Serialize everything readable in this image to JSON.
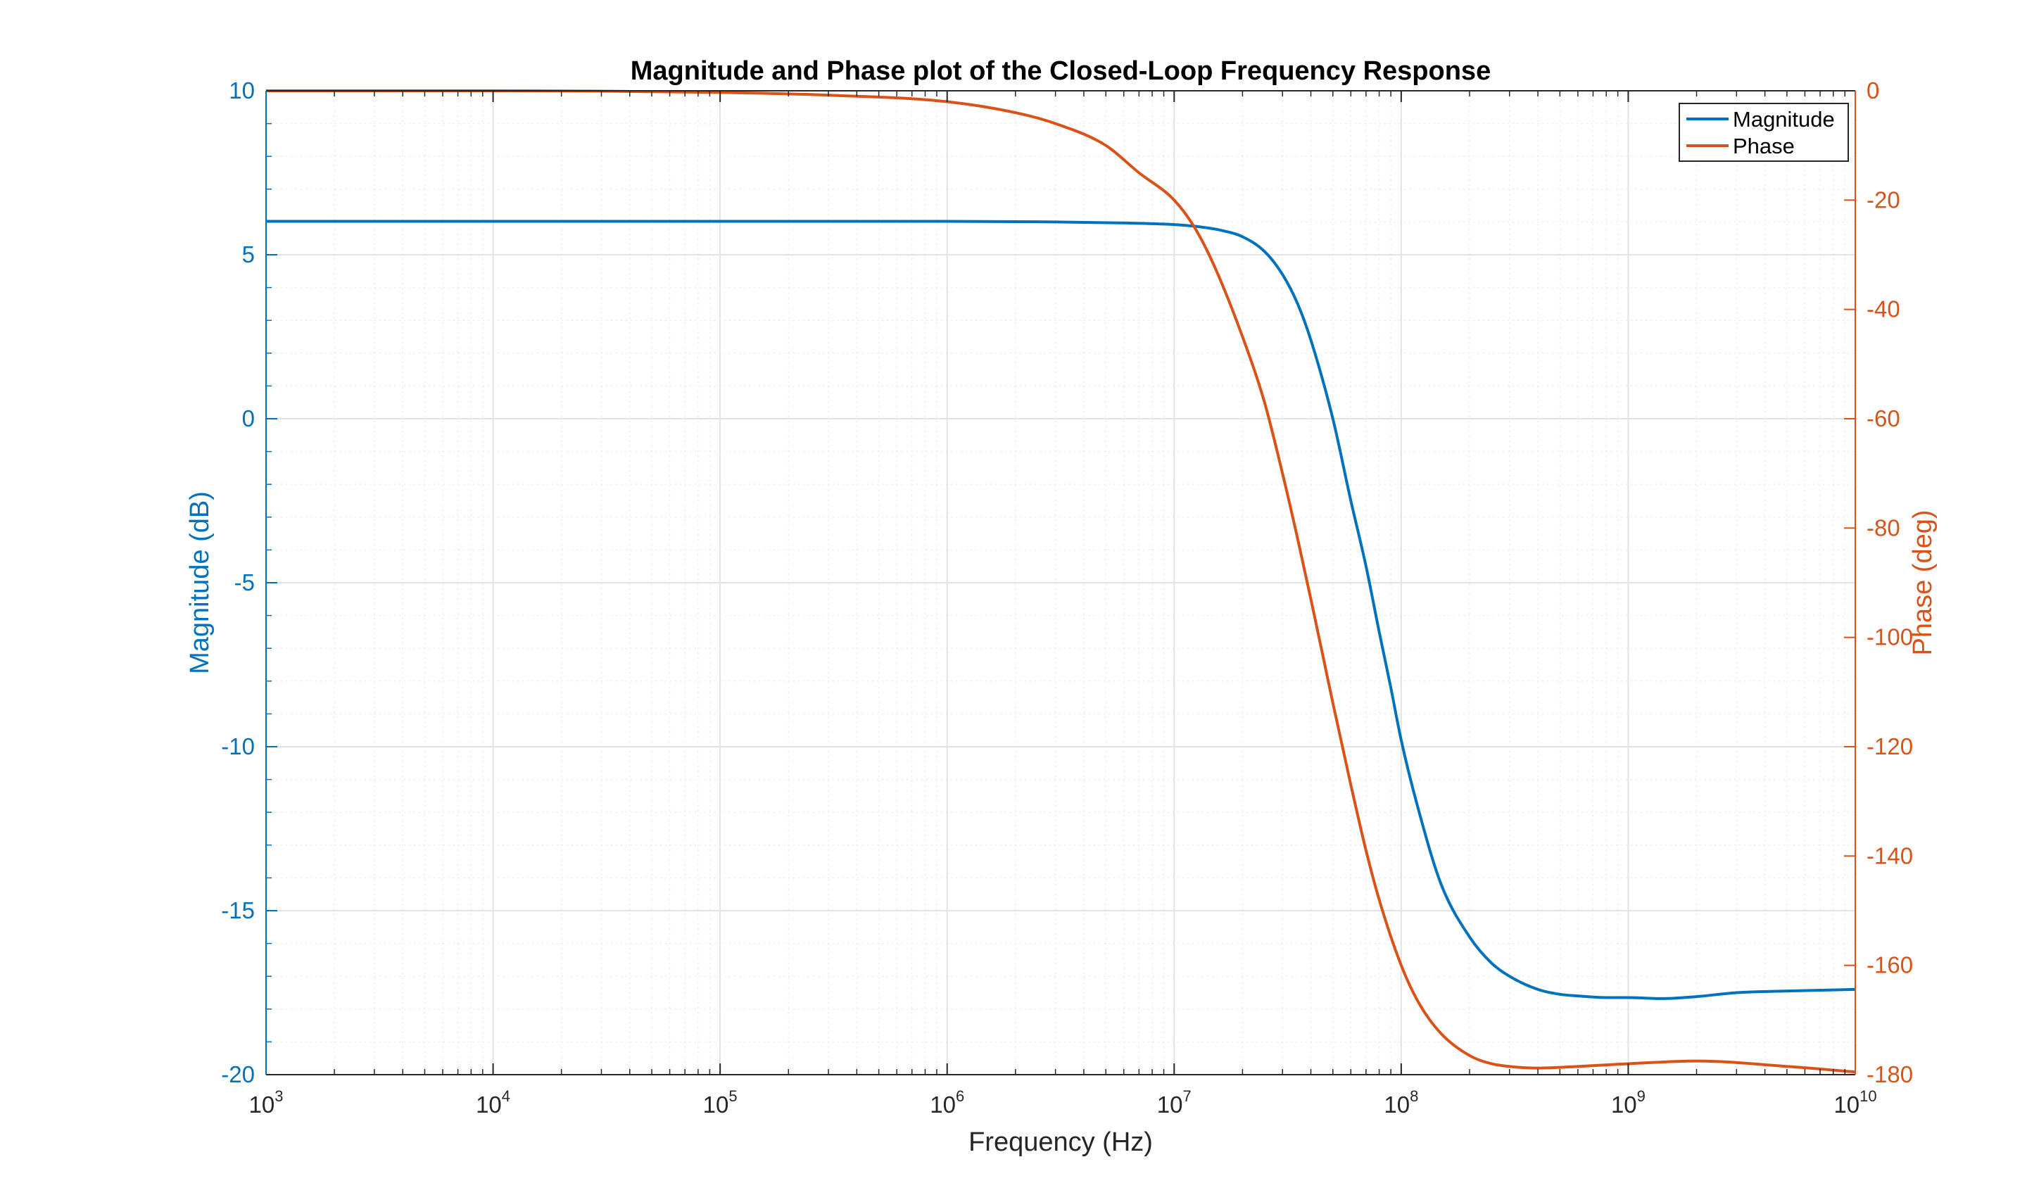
{
  "chart_data": {
    "type": "line",
    "title": "Magnitude and Phase plot of the Closed-Loop Frequency Response",
    "xlabel": "Frequency (Hz)",
    "xscale": "log",
    "xlim": [
      1000,
      10000000000
    ],
    "x_tick_base": "10",
    "x_tick_exponents": [
      "3",
      "4",
      "5",
      "6",
      "7",
      "8",
      "9",
      "10"
    ],
    "grid": true,
    "minor_grid": true,
    "legend_position": "top-right",
    "left_axis": {
      "label": "Magnitude (dB)",
      "ylim": [
        -20,
        10
      ],
      "ticks": [
        "10",
        "5",
        "0",
        "-5",
        "-10",
        "-15",
        "-20"
      ],
      "color": "#0072BD"
    },
    "right_axis": {
      "label": "Phase (deg)",
      "ylim": [
        -180,
        0
      ],
      "ticks": [
        "0",
        "-20",
        "-40",
        "-60",
        "-80",
        "-100",
        "-120",
        "-140",
        "-160",
        "-180"
      ],
      "color": "#D95319"
    },
    "series": [
      {
        "name": "Magnitude",
        "axis": "left",
        "color": "#0072BD",
        "x": [
          1000,
          10000,
          100000,
          1000000,
          3000000,
          6000000,
          10000000,
          13000000,
          16000000,
          20000000,
          25000000,
          30000000,
          35000000,
          40000000,
          50000000,
          60000000,
          70000000,
          80000000,
          90000000,
          100000000,
          120000000,
          150000000,
          200000000,
          250000000,
          300000000,
          400000000,
          500000000,
          600000000,
          800000000,
          1000000000,
          1400000000,
          2000000000,
          3000000000,
          5000000000,
          10000000000
        ],
        "y": [
          6.02,
          6.02,
          6.02,
          6.02,
          6.0,
          5.97,
          5.92,
          5.85,
          5.75,
          5.55,
          5.1,
          4.4,
          3.5,
          2.4,
          0.0,
          -2.5,
          -4.5,
          -6.5,
          -8.2,
          -9.8,
          -12.0,
          -14.2,
          -15.8,
          -16.6,
          -17.0,
          -17.4,
          -17.55,
          -17.6,
          -17.65,
          -17.65,
          -17.68,
          -17.62,
          -17.5,
          -17.45,
          -17.4
        ]
      },
      {
        "name": "Phase",
        "axis": "right",
        "color": "#D95319",
        "x": [
          1000,
          10000,
          100000,
          300000,
          1000000,
          2000000,
          3000000,
          5000000,
          7000000,
          10000000,
          12300000,
          15000000,
          20000000,
          25000000,
          30000000,
          35000000,
          40000000,
          45000000,
          50000000,
          60000000,
          70000000,
          80000000,
          100000000,
          120000000,
          150000000,
          200000000,
          250000000,
          300000000,
          400000000,
          600000000,
          1000000000,
          2000000000,
          5000000000,
          10000000000
        ],
        "y": [
          0,
          0,
          -0.3,
          -0.8,
          -2.0,
          -4.0,
          -6.0,
          -10.0,
          -15.0,
          -20.0,
          -25.0,
          -32.0,
          -45.0,
          -57.0,
          -70.0,
          -82.0,
          -93.0,
          -103.0,
          -112.0,
          -127.0,
          -139.0,
          -148.0,
          -160.0,
          -167.0,
          -172.5,
          -176.5,
          -178.0,
          -178.5,
          -178.8,
          -178.5,
          -178.0,
          -177.5,
          -178.5,
          -179.5
        ]
      }
    ]
  }
}
